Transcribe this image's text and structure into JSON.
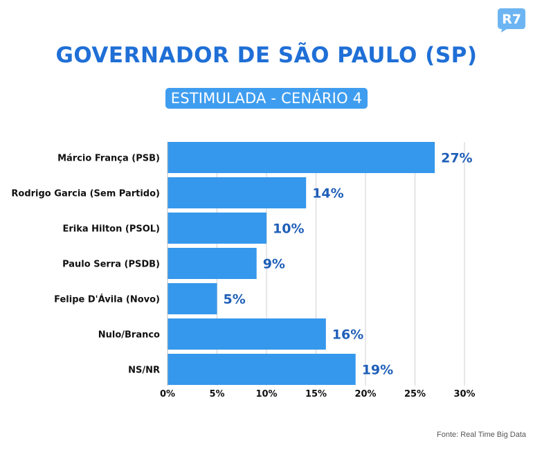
{
  "logo": {
    "text": "R7",
    "color": "#6cb5f2"
  },
  "header": {
    "title": "GOVERNADOR DE SÃO PAULO (SP)",
    "subtitle": "ESTIMULADA - CENÁRIO 4"
  },
  "chart_data": {
    "type": "bar",
    "orientation": "horizontal",
    "categories": [
      "Márcio França (PSB)",
      "Rodrigo Garcia (Sem Partido)",
      "Erika Hilton (PSOL)",
      "Paulo Serra (PSDB)",
      "Felipe D'Ávila (Novo)",
      "Nulo/Branco",
      "NS/NR"
    ],
    "values": [
      27,
      14,
      10,
      9,
      5,
      16,
      19
    ],
    "value_labels": [
      "27%",
      "14%",
      "10%",
      "9%",
      "5%",
      "16%",
      "19%"
    ],
    "xlim": [
      0,
      30
    ],
    "x_ticks": [
      0,
      5,
      10,
      15,
      20,
      25,
      30
    ],
    "x_tick_labels": [
      "0%",
      "5%",
      "10%",
      "15%",
      "20%",
      "25%",
      "30%"
    ],
    "grid": true,
    "bar_color": "#3598ec",
    "label_color": "#1f5fb8"
  },
  "footer": {
    "source": "Fonte: Real Time Big Data"
  },
  "colors": {
    "title": "#1f6fd6",
    "subtitle_bg": "#3f9df0",
    "grid": "#cfcfcf"
  }
}
